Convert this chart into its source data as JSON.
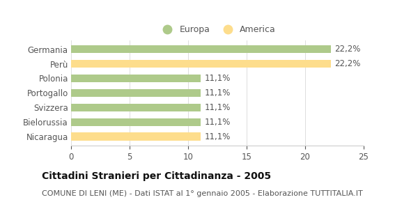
{
  "categories": [
    "Nicaragua",
    "Bielorussia",
    "Svizzera",
    "Portogallo",
    "Polonia",
    "Perù",
    "Germania"
  ],
  "values": [
    11.1,
    11.1,
    11.1,
    11.1,
    11.1,
    22.2,
    22.2
  ],
  "colors": [
    "#FDDD8C",
    "#AECA8A",
    "#AECA8A",
    "#AECA8A",
    "#AECA8A",
    "#FDDD8C",
    "#AECA8A"
  ],
  "labels": [
    "11,1%",
    "11,1%",
    "11,1%",
    "11,1%",
    "11,1%",
    "22,2%",
    "22,2%"
  ],
  "xlim": [
    0,
    25
  ],
  "xticks": [
    0,
    5,
    10,
    15,
    20,
    25
  ],
  "legend_europa_color": "#AECA8A",
  "legend_america_color": "#FDDD8C",
  "title": "Cittadini Stranieri per Cittadinanza - 2005",
  "subtitle": "COMUNE DI LENI (ME) - Dati ISTAT al 1° gennaio 2005 - Elaborazione TUTTITALIA.IT",
  "bar_height": 0.55,
  "background_color": "#ffffff",
  "label_fontsize": 8.5,
  "title_fontsize": 10,
  "subtitle_fontsize": 8,
  "text_color": "#555555"
}
